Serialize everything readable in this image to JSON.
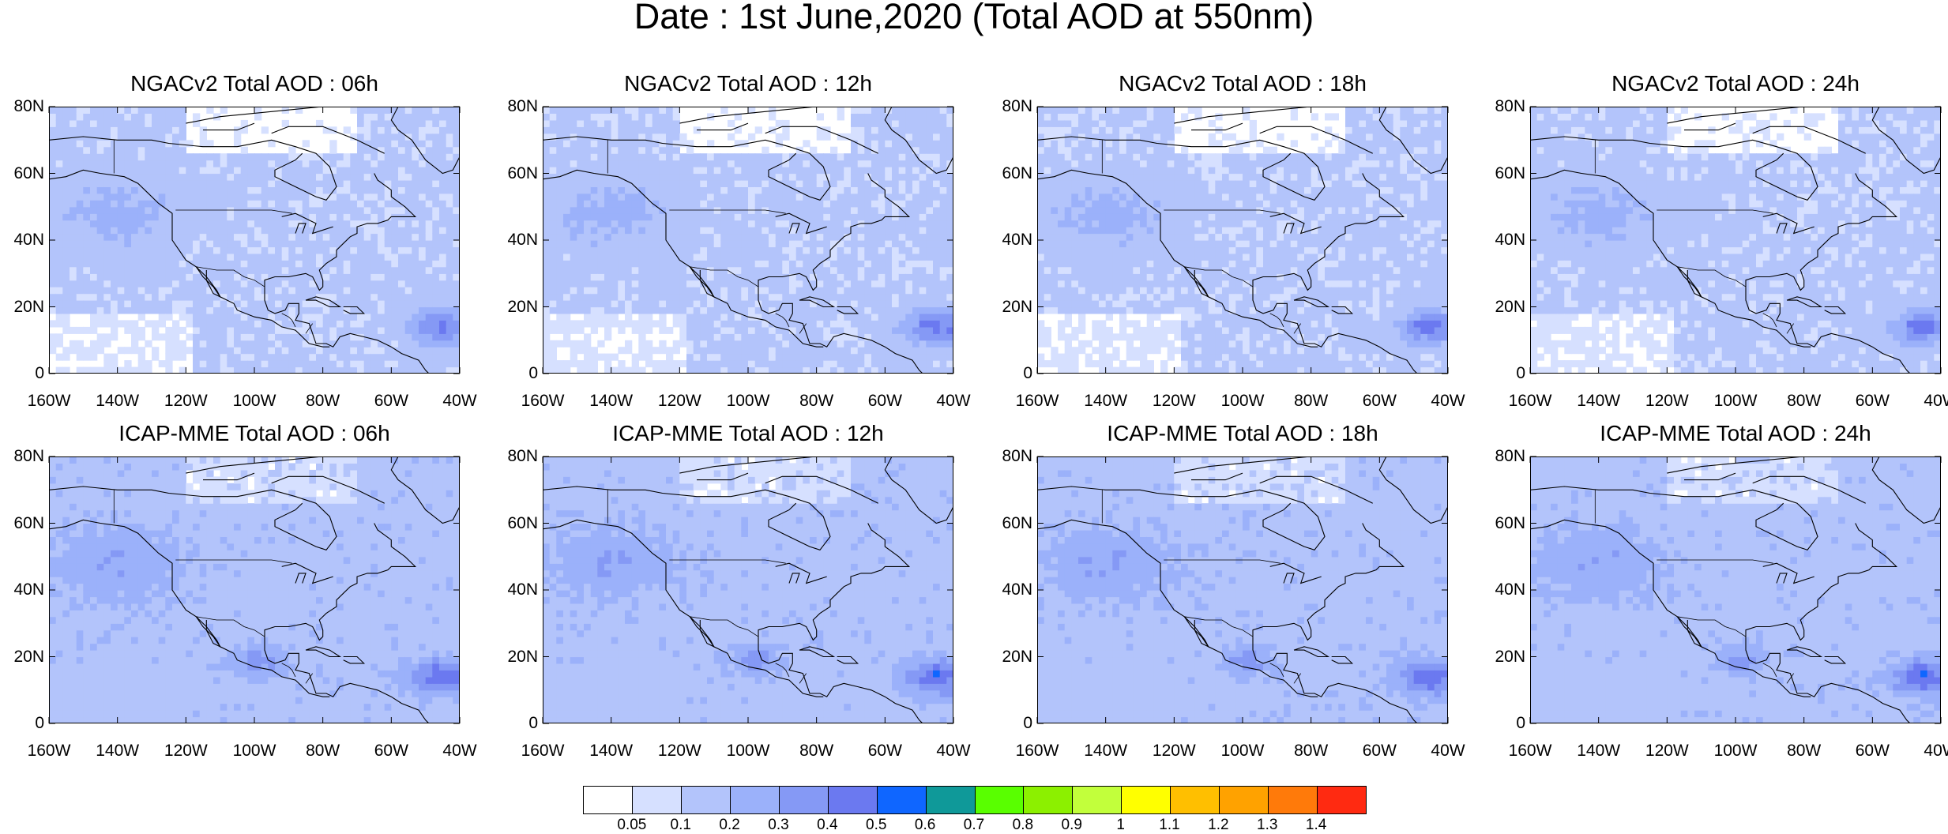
{
  "title": "Date : 1st June,2020 (Total AOD at 550nm)",
  "panels": [
    {
      "title": "NGACv2 Total AOD : 06h",
      "model": "NGACv2",
      "hour": "06h"
    },
    {
      "title": "NGACv2 Total AOD : 12h",
      "model": "NGACv2",
      "hour": "12h"
    },
    {
      "title": "NGACv2 Total AOD : 18h",
      "model": "NGACv2",
      "hour": "18h"
    },
    {
      "title": "NGACv2 Total AOD : 24h",
      "model": "NGACv2",
      "hour": "24h"
    },
    {
      "title": "ICAP-MME Total AOD : 06h",
      "model": "ICAP-MME",
      "hour": "06h"
    },
    {
      "title": "ICAP-MME Total AOD : 12h",
      "model": "ICAP-MME",
      "hour": "12h"
    },
    {
      "title": "ICAP-MME Total AOD : 18h",
      "model": "ICAP-MME",
      "hour": "18h"
    },
    {
      "title": "ICAP-MME Total AOD : 24h",
      "model": "ICAP-MME",
      "hour": "24h"
    }
  ],
  "axes": {
    "lat_labels": [
      "80N",
      "60N",
      "40N",
      "20N",
      "0"
    ],
    "lon_labels": [
      "160W",
      "140W",
      "120W",
      "100W",
      "80W",
      "60W",
      "40W"
    ],
    "lat_range": [
      0,
      80
    ],
    "lon_range": [
      -160,
      -40
    ]
  },
  "colorbar": {
    "labels": [
      "0.05",
      "0.1",
      "0.2",
      "0.3",
      "0.4",
      "0.5",
      "0.6",
      "0.7",
      "0.8",
      "0.9",
      "1",
      "1.1",
      "1.2",
      "1.3",
      "1.4"
    ],
    "colors": [
      "#ffffff",
      "#d6e0ff",
      "#b3c4fb",
      "#9bb1fa",
      "#8599f5",
      "#6b79f0",
      "#0f66ff",
      "#0f9999",
      "#59ff00",
      "#8cf000",
      "#c2ff3b",
      "#ffff00",
      "#ffbf00",
      "#ffa200",
      "#ff7a0a",
      "#ff2a11"
    ]
  }
}
